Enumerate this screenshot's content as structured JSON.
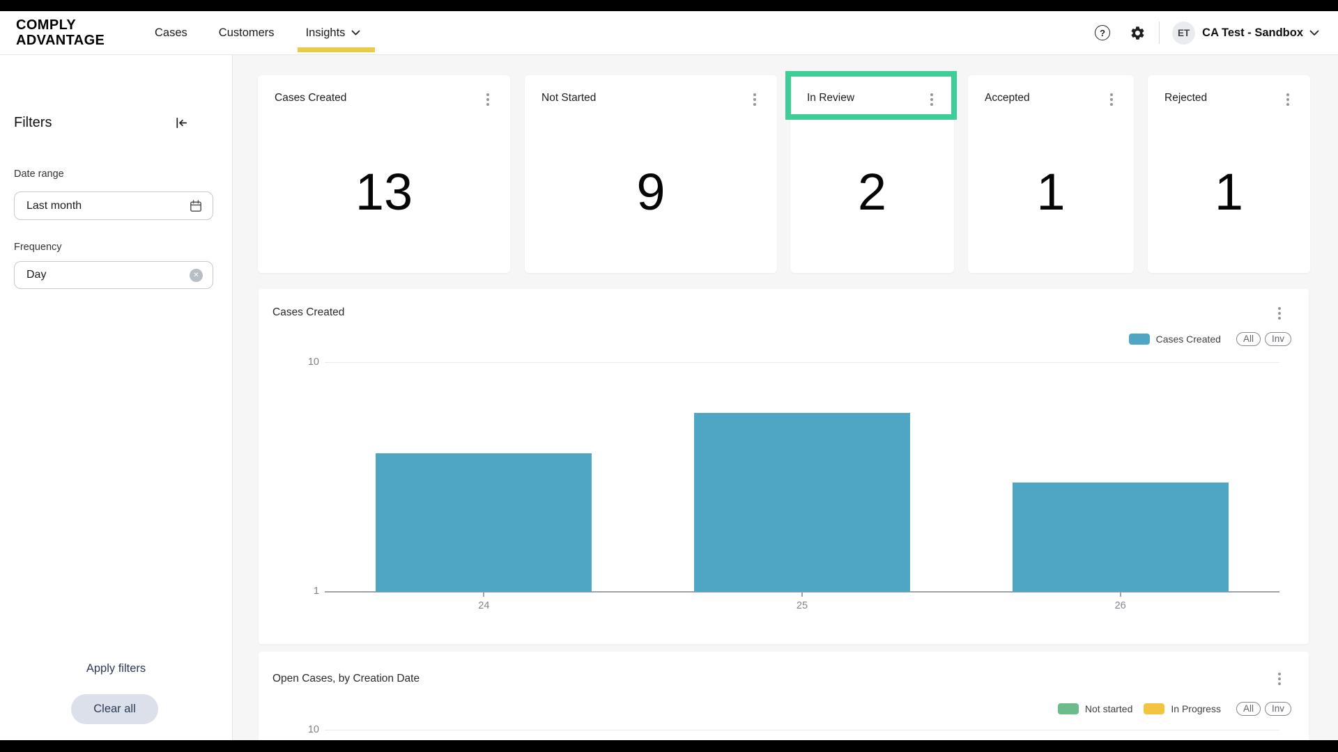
{
  "colors": {
    "letterbox": "#000000",
    "page_bg": "#f6f6f6",
    "surface": "#ffffff",
    "accent_yellow": "#e9cb45",
    "bar_blue": "#4fa6c4",
    "highlight_green": "#3ecd96",
    "legend_green": "#6cbc8b",
    "legend_yellow": "#f1c53f",
    "clear_button_bg": "#dce0eb",
    "button_text": "#2c3a52",
    "text_primary": "#1b1b1b",
    "text_secondary": "#5f6368",
    "axis_text": "#7d8185"
  },
  "icons": {
    "help_glyph": "?",
    "clear_glyph": "✕",
    "names": [
      "help-icon",
      "gear-icon",
      "chevron-down-icon",
      "collapse-sidebar-icon",
      "calendar-icon",
      "clear-circle-icon",
      "kebab-menu-icon"
    ]
  },
  "header": {
    "logo": {
      "line1": "COMPLY",
      "line2": "ADVANTAGE"
    },
    "nav": [
      {
        "label": "Cases",
        "active": false
      },
      {
        "label": "Customers",
        "active": false
      },
      {
        "label": "Insights",
        "active": true,
        "has_dropdown": true
      }
    ],
    "account": {
      "initials": "ET",
      "name": "CA Test - Sandbox"
    }
  },
  "sidebar": {
    "title": "Filters",
    "groups": [
      {
        "label": "Date range",
        "value": "Last month",
        "icon": "calendar"
      },
      {
        "label": "Frequency",
        "value": "Day",
        "icon": "clear-circle"
      }
    ],
    "apply_label": "Apply filters",
    "clear_label": "Clear all"
  },
  "stat_cards": [
    {
      "label": "Cases Created",
      "value": "13",
      "highlighted": false
    },
    {
      "label": "Not Started",
      "value": "9",
      "highlighted": false
    },
    {
      "label": "In Review",
      "value": "2",
      "highlighted": true
    },
    {
      "label": "Accepted",
      "value": "1",
      "highlighted": false
    },
    {
      "label": "Rejected",
      "value": "1",
      "highlighted": false
    }
  ],
  "chart_data": [
    {
      "type": "bar",
      "title": "Cases Created",
      "categories": [
        "24",
        "25",
        "26"
      ],
      "values": [
        4,
        6,
        3
      ],
      "series": [
        {
          "name": "Cases Created",
          "color": "#4fa6c4"
        }
      ],
      "y_scale": "log",
      "ylim": [
        1,
        10
      ],
      "y_ticks": [
        "10",
        "1"
      ],
      "xlabel": "",
      "ylabel": "",
      "grid": "horizontal line at 10 only",
      "legend_position": "top-right",
      "toggles": [
        "All",
        "Inv"
      ]
    },
    {
      "type": "bar",
      "title": "Open Cases, by Creation Date",
      "series": [
        {
          "name": "Not started",
          "color": "#6cbc8b"
        },
        {
          "name": "In Progress",
          "color": "#f1c53f"
        }
      ],
      "y_scale": "log",
      "visible_y_tick": "10",
      "legend_position": "top-right",
      "toggles": [
        "All",
        "Inv"
      ],
      "partially_visible": true
    }
  ]
}
